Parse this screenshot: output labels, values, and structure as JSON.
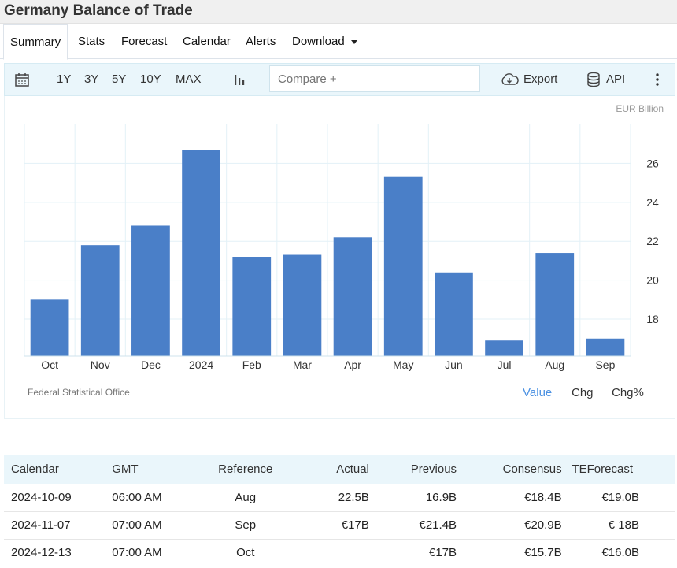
{
  "page_title": "Germany Balance of Trade",
  "tabs": [
    "Summary",
    "Stats",
    "Forecast",
    "Calendar",
    "Alerts",
    "Download"
  ],
  "toolbar": {
    "ranges": [
      "1Y",
      "3Y",
      "5Y",
      "10Y",
      "MAX"
    ],
    "compare_placeholder": "Compare +",
    "export_label": "Export",
    "api_label": "API"
  },
  "chart_data": {
    "type": "bar",
    "unit": "EUR Billion",
    "categories": [
      "Oct",
      "Nov",
      "Dec",
      "2024",
      "Feb",
      "Mar",
      "Apr",
      "May",
      "Jun",
      "Jul",
      "Aug",
      "Sep"
    ],
    "values": [
      19.0,
      21.8,
      22.8,
      26.7,
      21.2,
      21.3,
      22.2,
      25.3,
      20.4,
      16.9,
      21.4,
      17.0
    ],
    "ylim": [
      16.1,
      28
    ],
    "yticks": [
      18,
      20,
      22,
      24,
      26
    ],
    "bar_color": "#4a7fc8",
    "grid": true,
    "source": "Federal Statistical Office"
  },
  "modes": [
    "Value",
    "Chg",
    "Chg%"
  ],
  "calendar": {
    "headers": [
      "Calendar",
      "GMT",
      "Reference",
      "Actual",
      "Previous",
      "Consensus",
      "TEForecast"
    ],
    "rows": [
      [
        "2024-10-09",
        "06:00 AM",
        "Aug",
        "22.5B",
        "16.9B",
        "€18.4B",
        "€19.0B"
      ],
      [
        "2024-11-07",
        "07:00 AM",
        "Sep",
        "€17B",
        "€21.4B",
        "€20.9B",
        "€ 18B"
      ],
      [
        "2024-12-13",
        "07:00 AM",
        "Oct",
        "",
        "€17B",
        "€15.7B",
        "€16.0B"
      ]
    ]
  }
}
